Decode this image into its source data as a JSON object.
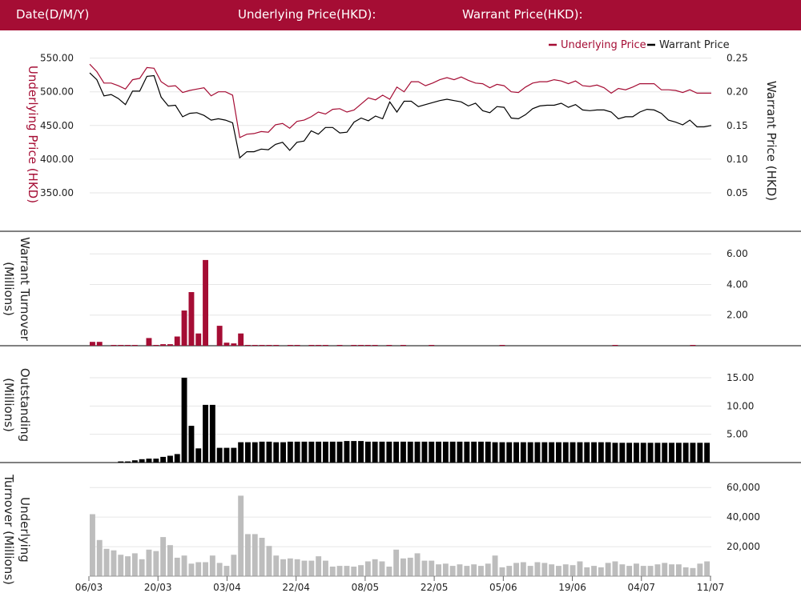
{
  "header": {
    "date_label": "Date(D/M/Y)",
    "underlying_label": "Underlying Price(HKD):",
    "warrant_label": "Warrant Price(HKD):"
  },
  "colors": {
    "brand": "#a50d34",
    "warrant": "#000000",
    "underlying_turnover": "#bdbdbd"
  },
  "chart_data": [
    {
      "type": "line",
      "legend": [
        "Underlying Price",
        "Warrant Price"
      ],
      "legend_position": "top-right",
      "ylabel_left": "Underlying Price (HKD)",
      "ylabel_right": "Warrant  Price (HKD)",
      "left_ticks": [
        "550.00",
        "500.00",
        "450.00",
        "400.00",
        "350.00"
      ],
      "right_ticks": [
        "0.25",
        "0.20",
        "0.15",
        "0.10",
        "0.05"
      ],
      "ylim_left": [
        325,
        565
      ],
      "ylim_right": [
        0.025,
        0.265
      ],
      "series": [
        {
          "name": "Underlying Price",
          "axis": "left",
          "values": [
            541,
            530,
            513,
            513,
            509,
            504,
            518,
            520,
            536,
            535,
            515,
            508,
            509,
            499,
            502,
            504,
            506,
            494,
            500,
            500,
            495,
            432,
            437,
            438,
            441,
            440,
            451,
            453,
            446,
            456,
            458,
            463,
            470,
            467,
            474,
            475,
            470,
            473,
            482,
            491,
            488,
            495,
            489,
            507,
            500,
            515,
            515,
            509,
            513,
            518,
            521,
            518,
            522,
            517,
            513,
            512,
            506,
            511,
            509,
            500,
            499,
            507,
            513,
            515,
            515,
            518,
            516,
            512,
            516,
            509,
            508,
            510,
            506,
            498,
            505,
            503,
            507,
            512,
            512,
            512,
            503,
            503,
            502,
            499,
            503,
            498,
            498,
            498
          ]
        },
        {
          "name": "Warrant Price",
          "axis": "right",
          "values": [
            0.228,
            0.218,
            0.194,
            0.196,
            0.19,
            0.181,
            0.201,
            0.201,
            0.223,
            0.224,
            0.192,
            0.179,
            0.18,
            0.163,
            0.168,
            0.169,
            0.165,
            0.158,
            0.16,
            0.158,
            0.154,
            0.102,
            0.111,
            0.111,
            0.115,
            0.114,
            0.122,
            0.125,
            0.113,
            0.125,
            0.127,
            0.142,
            0.137,
            0.147,
            0.147,
            0.139,
            0.14,
            0.155,
            0.161,
            0.157,
            0.164,
            0.16,
            0.185,
            0.17,
            0.186,
            0.186,
            0.178,
            0.181,
            0.184,
            0.187,
            0.189,
            0.187,
            0.185,
            0.179,
            0.183,
            0.172,
            0.169,
            0.178,
            0.177,
            0.161,
            0.16,
            0.166,
            0.175,
            0.179,
            0.18,
            0.18,
            0.183,
            0.177,
            0.181,
            0.173,
            0.172,
            0.173,
            0.173,
            0.17,
            0.16,
            0.163,
            0.163,
            0.17,
            0.174,
            0.173,
            0.168,
            0.158,
            0.155,
            0.151,
            0.158,
            0.148,
            0.148,
            0.15
          ]
        }
      ]
    },
    {
      "type": "bar",
      "ylabel": "Warrant  Turnover (Millions)",
      "ticks": [
        "6.00",
        "4.00",
        "2.00"
      ],
      "ylim": [
        0,
        6.9
      ],
      "values": [
        0.25,
        0.25,
        0,
        0.05,
        0.05,
        0.05,
        0.05,
        0,
        0.5,
        0.05,
        0.1,
        0.1,
        0.6,
        2.3,
        3.5,
        0.8,
        5.6,
        0,
        1.3,
        0.2,
        0.15,
        0.8,
        0.05,
        0.05,
        0.05,
        0.05,
        0.05,
        0,
        0.05,
        0.05,
        0,
        0.05,
        0.05,
        0.05,
        0,
        0.05,
        0,
        0.05,
        0.05,
        0.05,
        0.05,
        0,
        0.05,
        0,
        0.05,
        0,
        0,
        0,
        0.05,
        0,
        0,
        0,
        0,
        0,
        0,
        0,
        0,
        0,
        0.05,
        0,
        0,
        0,
        0,
        0,
        0,
        0,
        0,
        0,
        0,
        0,
        0,
        0,
        0,
        0,
        0.05,
        0,
        0,
        0,
        0,
        0,
        0,
        0,
        0,
        0,
        0,
        0.05,
        0,
        0
      ]
    },
    {
      "type": "bar",
      "ylabel": "Outstanding (Millions)",
      "ticks": [
        "15.00",
        "10.00",
        "5.00"
      ],
      "ylim": [
        0,
        16.7
      ],
      "values": [
        0,
        0,
        0,
        0,
        0.2,
        0.2,
        0.4,
        0.6,
        0.7,
        0.7,
        1.0,
        1.2,
        1.5,
        15.0,
        6.5,
        2.5,
        10.2,
        10.2,
        2.6,
        2.6,
        2.6,
        3.6,
        3.6,
        3.6,
        3.7,
        3.7,
        3.6,
        3.6,
        3.7,
        3.7,
        3.7,
        3.7,
        3.7,
        3.7,
        3.7,
        3.7,
        3.8,
        3.8,
        3.8,
        3.7,
        3.7,
        3.7,
        3.7,
        3.7,
        3.7,
        3.7,
        3.7,
        3.7,
        3.7,
        3.7,
        3.7,
        3.7,
        3.7,
        3.7,
        3.7,
        3.7,
        3.7,
        3.6,
        3.6,
        3.6,
        3.6,
        3.6,
        3.6,
        3.6,
        3.6,
        3.6,
        3.6,
        3.6,
        3.6,
        3.6,
        3.6,
        3.6,
        3.6,
        3.6,
        3.5,
        3.5,
        3.5,
        3.5,
        3.5,
        3.5,
        3.5,
        3.5,
        3.5,
        3.5,
        3.5,
        3.5,
        3.5,
        3.5
      ]
    },
    {
      "type": "bar",
      "ylabel": "Underlying Turnover (Millions)",
      "ticks": [
        "60,000",
        "40,000",
        "20,000"
      ],
      "ylim": [
        0,
        65000
      ],
      "values": [
        42000,
        24500,
        18500,
        17500,
        14500,
        13500,
        15500,
        11500,
        18000,
        17000,
        26500,
        21000,
        12500,
        14000,
        8500,
        9500,
        9500,
        14000,
        9000,
        7000,
        14500,
        54500,
        28500,
        28500,
        26000,
        20500,
        14000,
        11500,
        12000,
        11500,
        10500,
        10500,
        13500,
        10500,
        6500,
        7000,
        7000,
        6500,
        7500,
        10000,
        11500,
        10000,
        6500,
        18000,
        12000,
        12500,
        15500,
        10500,
        10500,
        8000,
        8500,
        7000,
        8000,
        7000,
        8000,
        7000,
        8500,
        14000,
        6000,
        7000,
        9000,
        9500,
        7000,
        9500,
        9000,
        8000,
        7000,
        8000,
        7500,
        10000,
        6000,
        7000,
        6000,
        9000,
        10000,
        8000,
        7000,
        8500,
        7000,
        7000,
        8000,
        9000,
        8000,
        8000,
        6000,
        5500,
        8500,
        10000
      ]
    }
  ],
  "x_axis": {
    "labels": [
      "06/03",
      "20/03",
      "03/04",
      "22/04",
      "08/05",
      "22/05",
      "05/06",
      "19/06",
      "04/07",
      "11/07"
    ]
  }
}
